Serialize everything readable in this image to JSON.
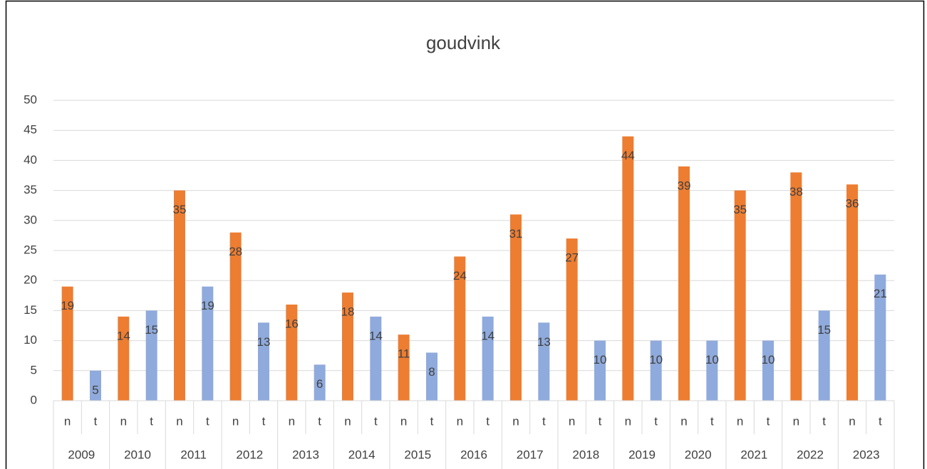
{
  "chart_data": {
    "type": "bar",
    "title": "goudvink",
    "categories": [
      "2009",
      "2010",
      "2011",
      "2012",
      "2013",
      "2014",
      "2015",
      "2016",
      "2017",
      "2018",
      "2019",
      "2020",
      "2021",
      "2022",
      "2023"
    ],
    "subcategories": [
      "n",
      "t"
    ],
    "series": [
      {
        "color": "#ed7d31",
        "values": [
          19,
          14,
          35,
          28,
          16,
          18,
          11,
          24,
          31,
          27,
          44,
          39,
          35,
          38,
          36
        ]
      },
      {
        "color": "#8faadc",
        "values": [
          5,
          15,
          19,
          13,
          6,
          14,
          8,
          14,
          13,
          10,
          10,
          10,
          10,
          15,
          21
        ]
      }
    ],
    "ylim": [
      0,
      50
    ],
    "yticks": [
      0,
      5,
      10,
      15,
      20,
      25,
      30,
      35,
      40,
      45,
      50
    ],
    "grid": true
  }
}
